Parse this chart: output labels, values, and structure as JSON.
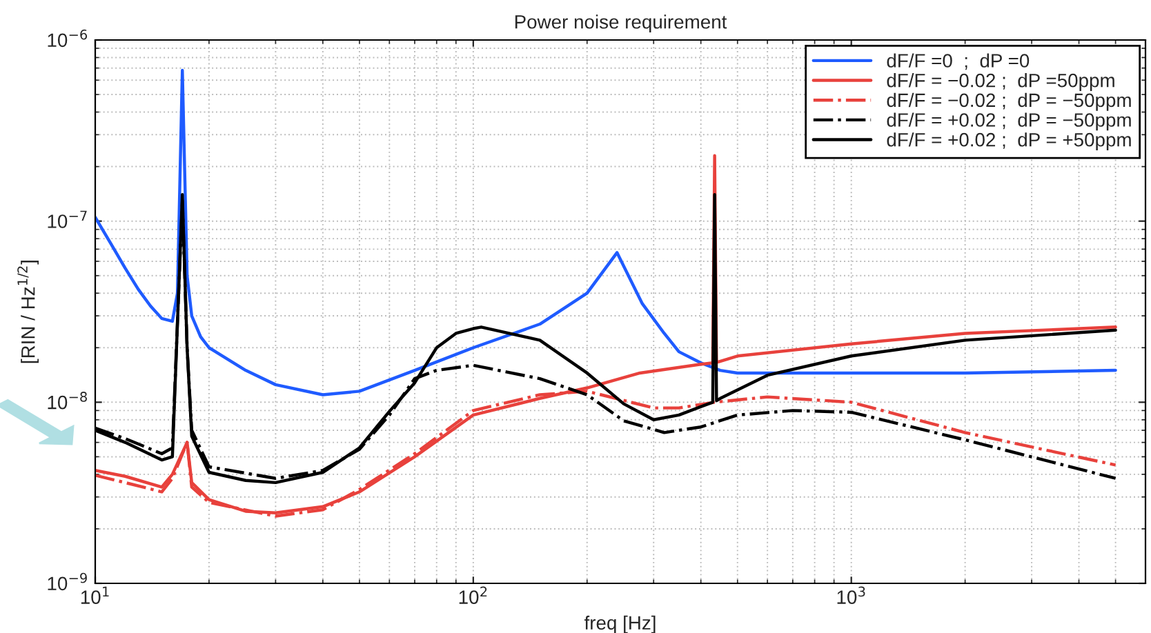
{
  "chart_data": {
    "type": "line",
    "title": "Power noise requirement",
    "xlabel": "freq [Hz]",
    "ylabel": "[RIN / Hz$^{1/2}$]",
    "log": "xy",
    "grid": true,
    "legend": "top right",
    "marker": "none",
    "xlim": [
      10,
      6000
    ],
    "ylim": [
      1e-09,
      1e-06
    ],
    "xticks": [
      {
        "value": 10,
        "label": "10$^{1}$"
      },
      {
        "value": 100,
        "label": "10$^{2}$"
      },
      {
        "value": 1000,
        "label": "10$^{3}$"
      }
    ],
    "yticks": [
      {
        "value": 1e-09,
        "label": "10$^{−9}$"
      },
      {
        "value": 1e-08,
        "label": "10$^{−8}$"
      },
      {
        "value": 1e-07,
        "label": "10$^{−7}$"
      },
      {
        "value": 1e-06,
        "label": "10$^{−6}$"
      }
    ],
    "series": [
      {
        "name": "dF/F =0  ;  dP =0",
        "color": "#1f5bff",
        "line_style": "solid",
        "x": [
          10,
          11,
          12,
          13,
          14,
          15,
          16,
          16.5,
          17,
          17.5,
          18,
          19,
          20,
          25,
          30,
          40,
          50,
          70,
          100,
          150,
          200,
          240,
          280,
          320,
          350,
          400,
          450,
          500,
          700,
          1000,
          2000,
          5000
        ],
        "values": [
          1.05e-07,
          7.5e-08,
          5.5e-08,
          4.2e-08,
          3.4e-08,
          2.9e-08,
          2.8e-08,
          4e-08,
          6.8e-07,
          5e-08,
          3e-08,
          2.3e-08,
          2e-08,
          1.5e-08,
          1.25e-08,
          1.1e-08,
          1.15e-08,
          1.5e-08,
          2e-08,
          2.7e-08,
          4e-08,
          6.7e-08,
          3.5e-08,
          2.4e-08,
          1.9e-08,
          1.65e-08,
          1.5e-08,
          1.45e-08,
          1.45e-08,
          1.45e-08,
          1.45e-08,
          1.5e-08
        ]
      },
      {
        "name": "dF/F = −0.02 ;  dP =50ppm",
        "color": "#e8413c",
        "line_style": "solid",
        "x": [
          10,
          12,
          15,
          16,
          17,
          17.5,
          18,
          20,
          25,
          30,
          40,
          50,
          70,
          100,
          150,
          200,
          276,
          400,
          430,
          435,
          440,
          500,
          1000,
          2000,
          5000
        ],
        "values": [
          4.2e-09,
          3.9e-09,
          3.4e-09,
          4e-09,
          null,
          6e-09,
          3.6e-09,
          2.9e-09,
          2.5e-09,
          2.45e-09,
          2.65e-09,
          3.2e-09,
          5e-09,
          8.5e-09,
          1.05e-08,
          1.2e-08,
          1.45e-08,
          1.62e-08,
          1.65e-08,
          2.3e-07,
          1.66e-08,
          1.8e-08,
          2.1e-08,
          2.4e-08,
          2.6e-08
        ]
      },
      {
        "name": "dF/F = −0.02 ;  dP = −50ppm",
        "color": "#e8413c",
        "line_style": "dashdot",
        "x": [
          10,
          12,
          15,
          16,
          17,
          17.5,
          18,
          20,
          30,
          40,
          50,
          70,
          100,
          150,
          200,
          300,
          350,
          435,
          600,
          1000,
          2000,
          5000
        ],
        "values": [
          3.95e-09,
          3.6e-09,
          3.2e-09,
          3.8e-09,
          null,
          6e-09,
          3.4e-09,
          2.8e-09,
          2.35e-09,
          2.55e-09,
          3.3e-09,
          5.2e-09,
          9e-09,
          1.1e-08,
          1.15e-08,
          9.3e-09,
          9.3e-09,
          1e-08,
          1.07e-08,
          1e-08,
          6.8e-09,
          4.5e-09
        ]
      },
      {
        "name": "dF/F = +0.02 ;  dP = −50ppm",
        "color": "#000000",
        "line_style": "dashdot",
        "x": [
          10,
          12,
          15,
          16,
          17,
          17.5,
          18,
          20,
          30,
          40,
          50,
          60,
          70,
          80,
          100,
          150,
          200,
          250,
          320,
          400,
          500,
          700,
          1000,
          2000,
          5000
        ],
        "values": [
          7.2e-09,
          6.3e-09,
          5.2e-09,
          5.6e-09,
          1.3e-07,
          2e-08,
          7e-09,
          4.4e-09,
          3.8e-09,
          4.2e-09,
          5.5e-09,
          8.5e-09,
          1.35e-08,
          1.5e-08,
          1.6e-08,
          1.35e-08,
          1.1e-08,
          7.9e-09,
          6.8e-09,
          7.3e-09,
          8.5e-09,
          9e-09,
          8.8e-09,
          6.2e-09,
          3.8e-09
        ]
      },
      {
        "name": "dF/F = +0.02 ;  dP = +50ppm",
        "color": "#000000",
        "line_style": "solid",
        "x": [
          10,
          12,
          15,
          16,
          17,
          17.5,
          18,
          20,
          25,
          30,
          40,
          50,
          60,
          70,
          80,
          90,
          100,
          105,
          150,
          200,
          250,
          300,
          350,
          430,
          435,
          440,
          450,
          600,
          1000,
          2000,
          5000
        ],
        "values": [
          7e-09,
          6e-09,
          4.8e-09,
          5e-09,
          1.4e-07,
          2e-08,
          6.5e-09,
          4.1e-09,
          3.7e-09,
          3.6e-09,
          4.1e-09,
          5.6e-09,
          8.9e-09,
          1.28e-08,
          2e-08,
          2.4e-08,
          2.55e-08,
          2.6e-08,
          2.2e-08,
          1.45e-08,
          9.8e-09,
          8e-09,
          8.5e-09,
          1e-08,
          1.4e-07,
          1.02e-08,
          1.05e-08,
          1.41e-08,
          1.8e-08,
          2.2e-08,
          2.5e-08
        ]
      }
    ]
  }
}
